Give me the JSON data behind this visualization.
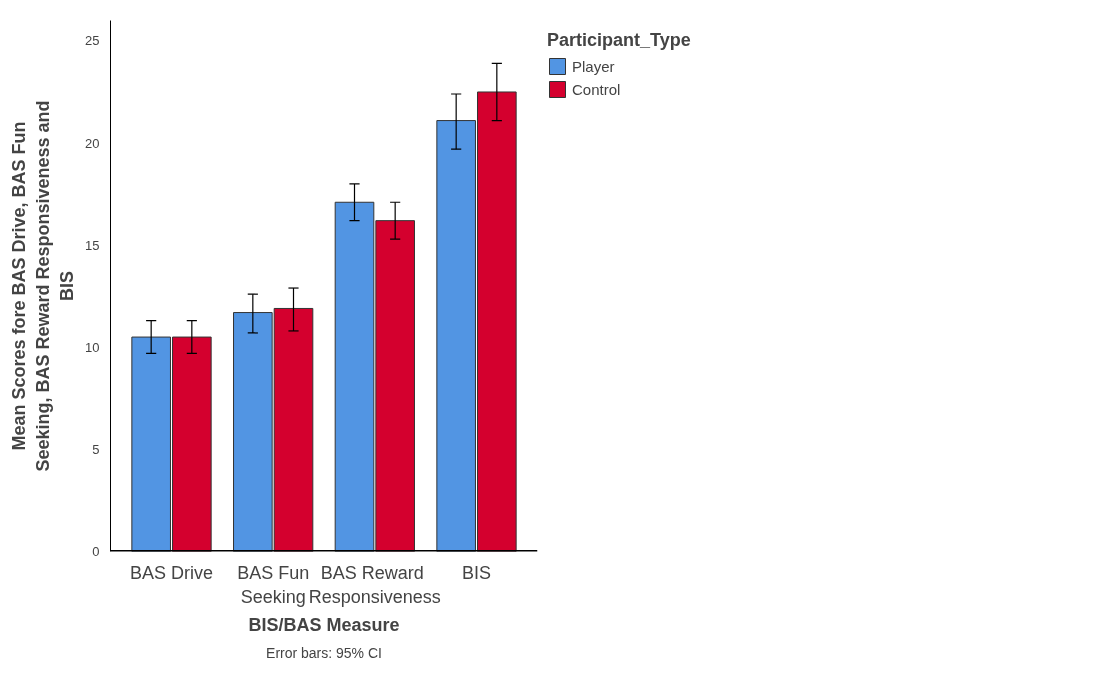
{
  "chart_data": {
    "type": "bar",
    "xlabel": "BIS/BAS Measure",
    "ylabel": "Mean Scores fore BAS Drive, BAS Fun Seeking, BAS Reward Responsiveness and BIS",
    "legend_title": "Participant_Type",
    "categories": [
      "BAS Drive",
      "BAS Fun\nSeeking",
      "BAS  Reward\nResponsiveness",
      "BIS"
    ],
    "series": [
      {
        "name": "Player",
        "color": "#5295e3",
        "values": [
          10.5,
          11.7,
          17.1,
          21.1
        ],
        "errors": [
          [
            9.7,
            11.3
          ],
          [
            10.7,
            12.6
          ],
          [
            16.2,
            18.0
          ],
          [
            19.7,
            22.4
          ]
        ]
      },
      {
        "name": "Control",
        "color": "#d4002e",
        "values": [
          10.5,
          11.9,
          16.2,
          22.5
        ],
        "errors": [
          [
            9.7,
            11.3
          ],
          [
            10.8,
            12.9
          ],
          [
            15.3,
            17.1
          ],
          [
            21.1,
            23.9
          ]
        ]
      }
    ],
    "ylim": [
      0,
      26
    ],
    "yticks": [
      0,
      5,
      10,
      15,
      20,
      25
    ],
    "grid": false,
    "legend": "top right",
    "annotations": [
      "Error bars: 95% CI"
    ]
  }
}
